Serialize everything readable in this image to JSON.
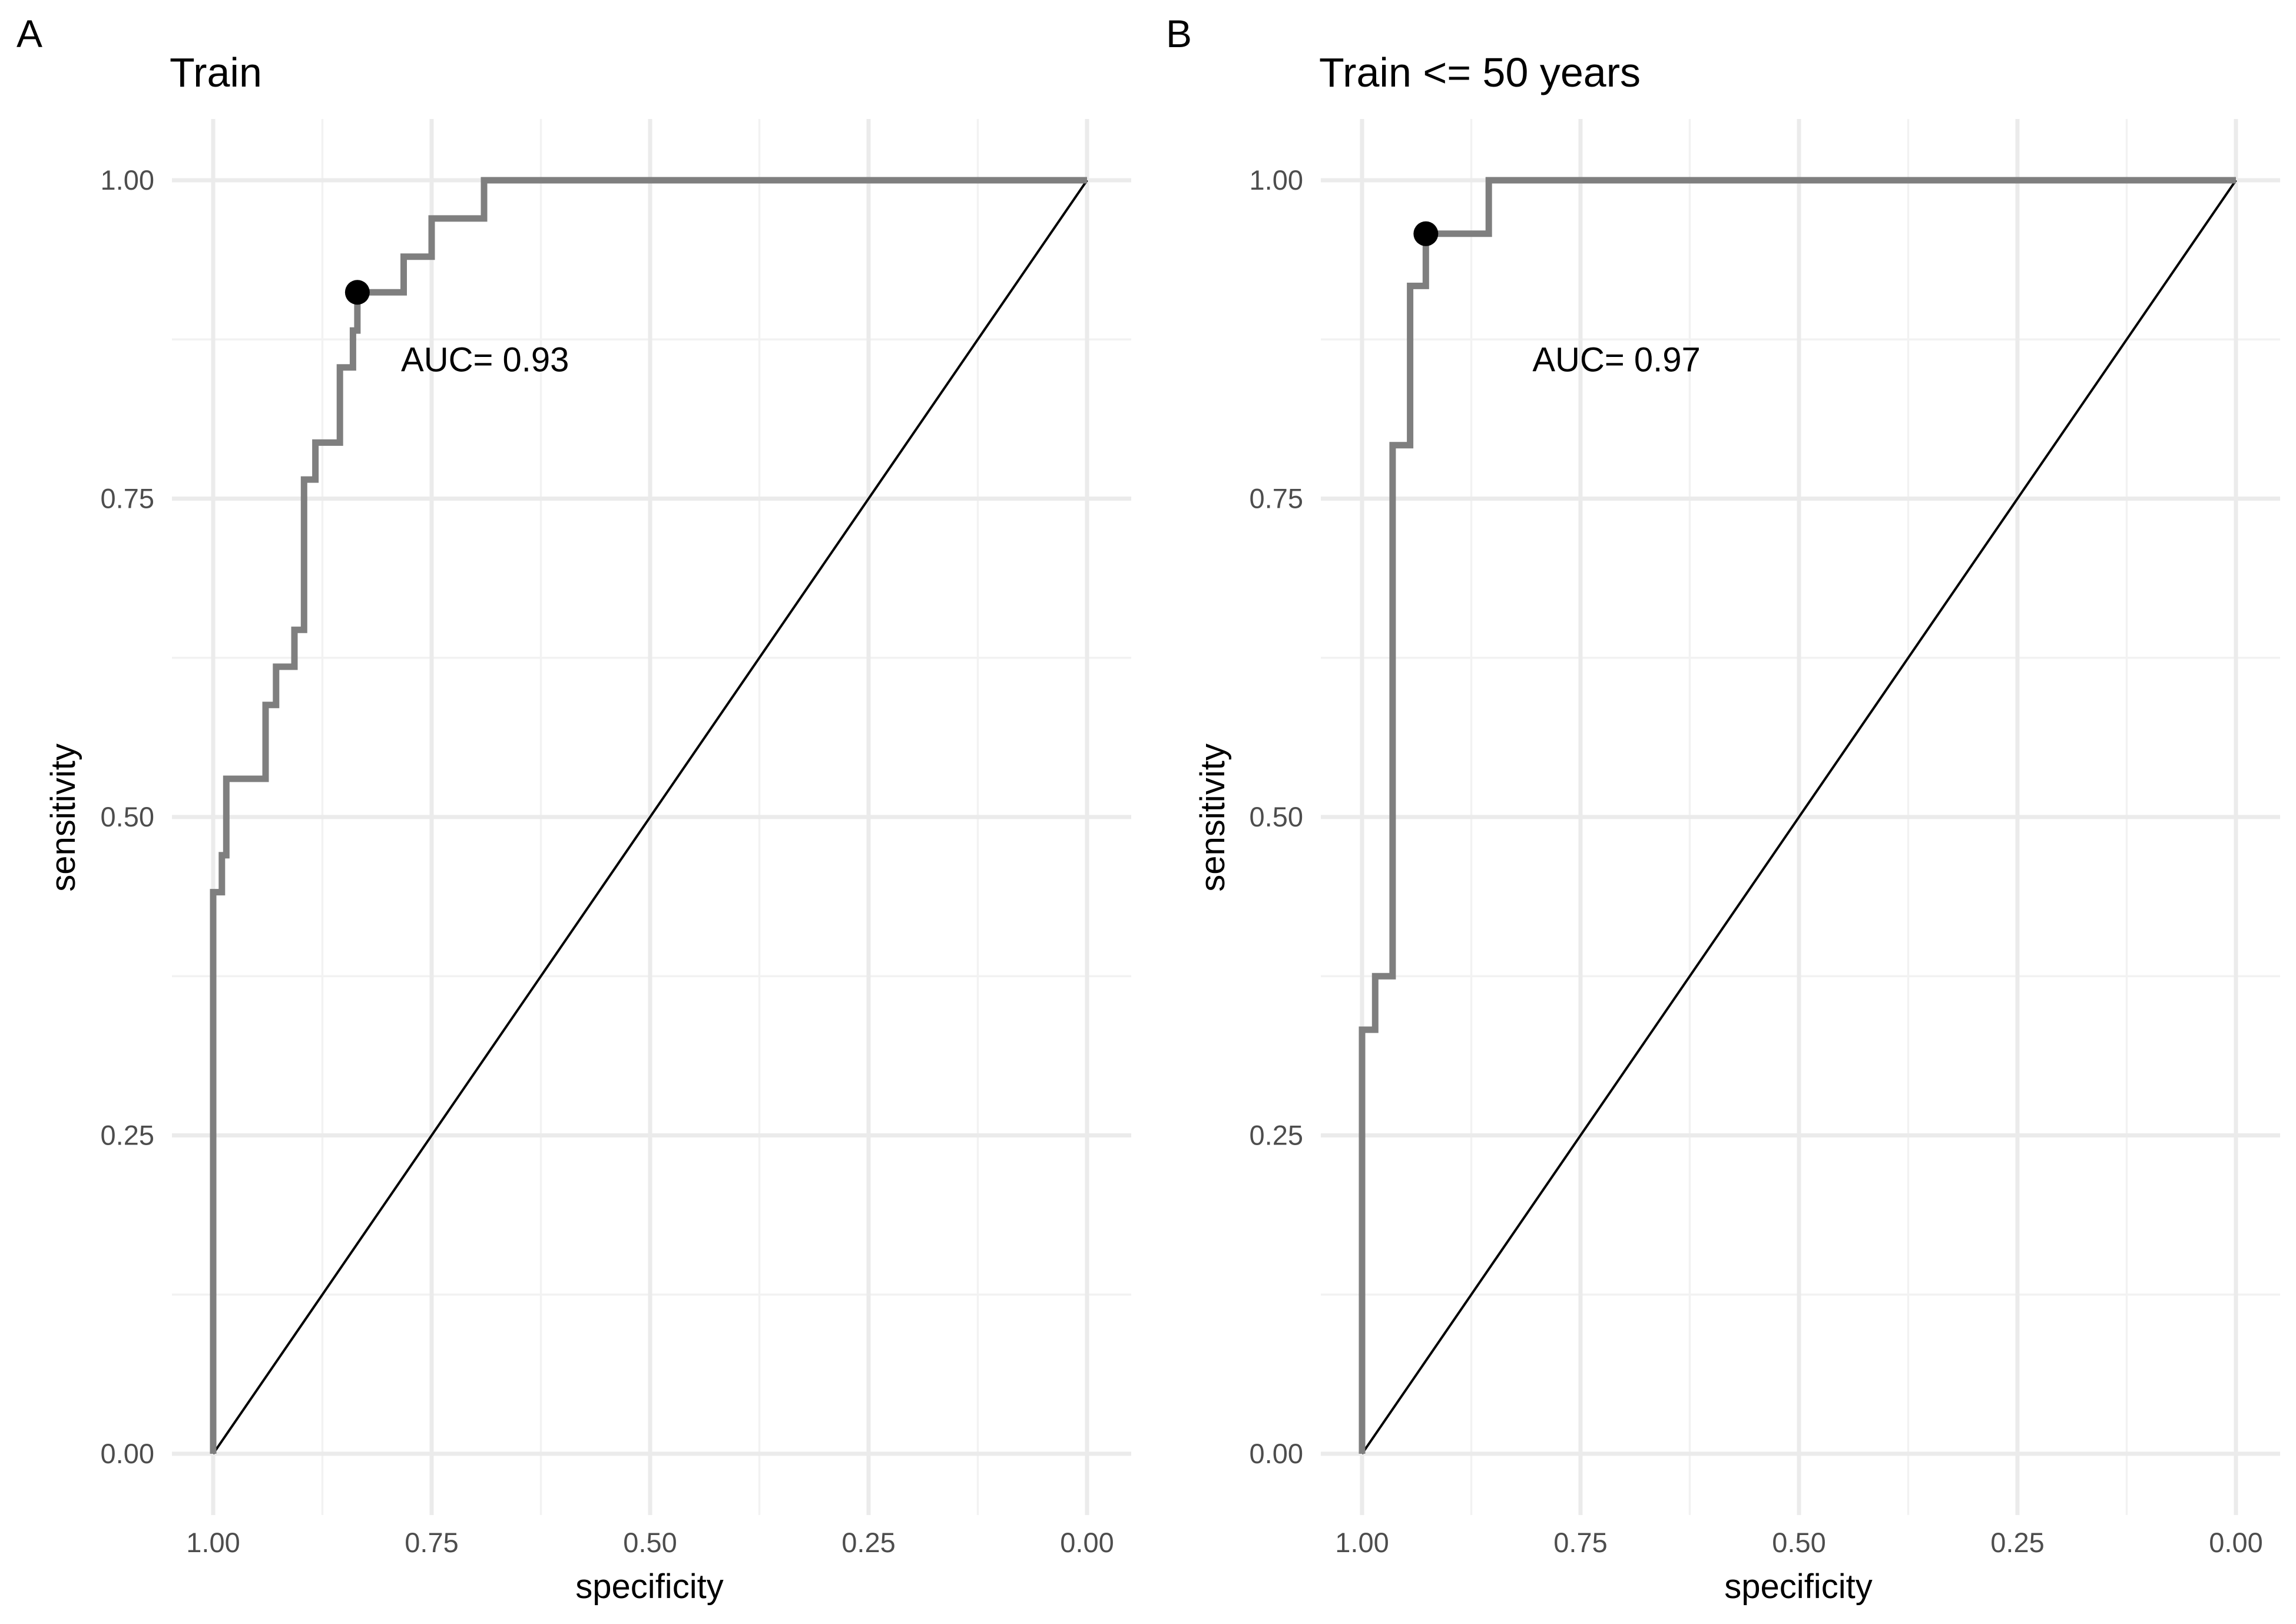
{
  "chart_data": [
    {
      "type": "line",
      "panel_label": "A",
      "title": "Train",
      "xlabel": "specificity",
      "ylabel": "sensitivity",
      "x_reversed": true,
      "xlim": [
        1.0,
        0.0
      ],
      "ylim": [
        0.0,
        1.0
      ],
      "xticks": [
        1.0,
        0.75,
        0.5,
        0.25,
        0.0
      ],
      "xtick_labels": [
        "1.00",
        "0.75",
        "0.50",
        "0.25",
        "0.00"
      ],
      "yticks": [
        0.0,
        0.25,
        0.5,
        0.75,
        1.0
      ],
      "ytick_labels": [
        "0.00",
        "0.25",
        "0.50",
        "0.75",
        "1.00"
      ],
      "grid": true,
      "annotation": "AUC= 0.93",
      "annotation_pos": {
        "specificity": 0.785,
        "sensitivity": 0.85
      },
      "best_point": {
        "specificity": 0.835,
        "sensitivity": 0.912
      },
      "reference_line": {
        "from": [
          1.0,
          0.0
        ],
        "to": [
          0.0,
          1.0
        ]
      },
      "series": [
        {
          "name": "ROC",
          "specificity": [
            1.0,
            1.0,
            0.99,
            0.99,
            0.985,
            0.985,
            0.94,
            0.94,
            0.928,
            0.928,
            0.907,
            0.907,
            0.896,
            0.896,
            0.883,
            0.883,
            0.855,
            0.855,
            0.84,
            0.84,
            0.835,
            0.835,
            0.782,
            0.782,
            0.75,
            0.75,
            0.69,
            0.69,
            0.0
          ],
          "sensitivity": [
            0.0,
            0.441,
            0.441,
            0.47,
            0.47,
            0.53,
            0.53,
            0.588,
            0.588,
            0.618,
            0.618,
            0.647,
            0.647,
            0.765,
            0.765,
            0.794,
            0.794,
            0.853,
            0.853,
            0.882,
            0.882,
            0.912,
            0.912,
            0.94,
            0.94,
            0.97,
            0.97,
            1.0,
            1.0
          ]
        }
      ]
    },
    {
      "type": "line",
      "panel_label": "B",
      "title": "Train <= 50 years",
      "xlabel": "specificity",
      "ylabel": "sensitivity",
      "x_reversed": true,
      "xlim": [
        1.0,
        0.0
      ],
      "ylim": [
        0.0,
        1.0
      ],
      "xticks": [
        1.0,
        0.75,
        0.5,
        0.25,
        0.0
      ],
      "xtick_labels": [
        "1.00",
        "0.75",
        "0.50",
        "0.25",
        "0.00"
      ],
      "yticks": [
        0.0,
        0.25,
        0.5,
        0.75,
        1.0
      ],
      "ytick_labels": [
        "0.00",
        "0.25",
        "0.50",
        "0.75",
        "1.00"
      ],
      "grid": true,
      "annotation": "AUC= 0.97",
      "annotation_pos": {
        "specificity": 0.805,
        "sensitivity": 0.85
      },
      "best_point": {
        "specificity": 0.927,
        "sensitivity": 0.958
      },
      "reference_line": {
        "from": [
          1.0,
          0.0
        ],
        "to": [
          0.0,
          1.0
        ]
      },
      "series": [
        {
          "name": "ROC",
          "specificity": [
            1.0,
            1.0,
            0.985,
            0.985,
            0.965,
            0.965,
            0.945,
            0.945,
            0.927,
            0.927,
            0.855,
            0.855,
            0.0
          ],
          "sensitivity": [
            0.0,
            0.333,
            0.333,
            0.375,
            0.375,
            0.792,
            0.792,
            0.917,
            0.917,
            0.958,
            0.958,
            1.0,
            1.0
          ]
        }
      ]
    }
  ]
}
